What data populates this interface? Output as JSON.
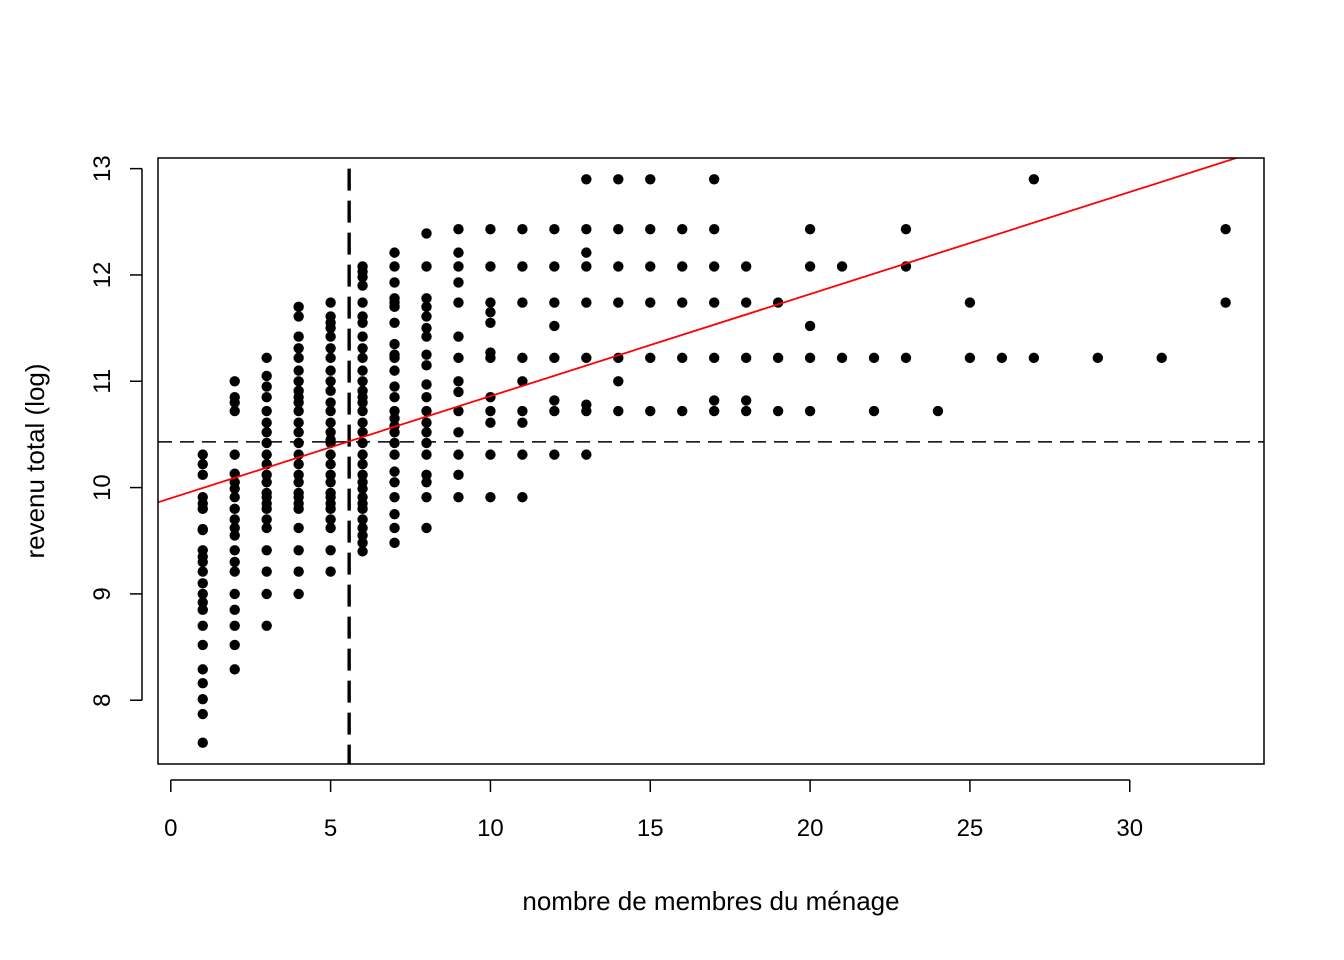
{
  "chart_data": {
    "type": "scatter",
    "title": "",
    "xlabel": "nombre de membres du ménage",
    "ylabel": "revenu total (log)",
    "xlim": [
      -0.4,
      34.2
    ],
    "ylim": [
      7.4,
      13.1
    ],
    "x_ticks": [
      0,
      5,
      10,
      15,
      20,
      25,
      30
    ],
    "y_ticks": [
      8,
      9,
      10,
      11,
      12,
      13
    ],
    "grid": false,
    "legend": "none",
    "point_color": "#000000",
    "regression_line": {
      "intercept": 9.9,
      "slope": 0.096,
      "color": "#ff0000"
    },
    "mean_x": 5.58,
    "mean_y": 10.43,
    "groups": [
      {
        "x": 1,
        "y": [
          10.31,
          10.22,
          10.12,
          9.91,
          9.85,
          9.8,
          9.61,
          9.6,
          9.41,
          9.35,
          9.3,
          9.21,
          9.1,
          9.0,
          8.92,
          8.85,
          8.7,
          8.52,
          8.29,
          8.16,
          8.01,
          7.87,
          7.6
        ]
      },
      {
        "x": 2,
        "y": [
          11.0,
          10.85,
          10.8,
          10.72,
          10.31,
          10.13,
          10.05,
          9.99,
          9.91,
          9.8,
          9.7,
          9.62,
          9.55,
          9.41,
          9.3,
          9.21,
          9.0,
          8.85,
          8.7,
          8.52,
          8.29
        ]
      },
      {
        "x": 3,
        "y": [
          11.22,
          11.05,
          10.95,
          10.85,
          10.72,
          10.61,
          10.52,
          10.42,
          10.31,
          10.22,
          10.12,
          10.05,
          9.95,
          9.91,
          9.85,
          9.8,
          9.7,
          9.62,
          9.41,
          9.21,
          9.0,
          8.7
        ]
      },
      {
        "x": 4,
        "y": [
          11.7,
          11.61,
          11.42,
          11.31,
          11.22,
          11.1,
          11.0,
          10.91,
          10.85,
          10.8,
          10.72,
          10.61,
          10.52,
          10.42,
          10.31,
          10.22,
          10.12,
          10.05,
          9.95,
          9.91,
          9.85,
          9.8,
          9.62,
          9.41,
          9.21,
          9.0
        ]
      },
      {
        "x": 5,
        "y": [
          11.74,
          11.61,
          11.55,
          11.5,
          11.42,
          11.31,
          11.22,
          11.1,
          11.0,
          10.91,
          10.8,
          10.72,
          10.61,
          10.52,
          10.45,
          10.42,
          10.31,
          10.22,
          10.12,
          10.05,
          9.95,
          9.91,
          9.85,
          9.8,
          9.7,
          9.62,
          9.41,
          9.21
        ]
      },
      {
        "x": 6,
        "y": [
          12.08,
          12.03,
          11.98,
          11.9,
          11.74,
          11.61,
          11.55,
          11.42,
          11.31,
          11.22,
          11.1,
          11.0,
          10.91,
          10.85,
          10.8,
          10.72,
          10.61,
          10.52,
          10.42,
          10.31,
          10.22,
          10.12,
          10.05,
          9.99,
          9.91,
          9.85,
          9.8,
          9.7,
          9.62,
          9.55,
          9.48,
          9.4
        ]
      },
      {
        "x": 7,
        "y": [
          12.21,
          12.08,
          11.93,
          11.78,
          11.74,
          11.7,
          11.55,
          11.35,
          11.25,
          11.22,
          11.1,
          10.95,
          10.85,
          10.72,
          10.65,
          10.58,
          10.52,
          10.42,
          10.31,
          10.15,
          10.05,
          9.91,
          9.75,
          9.62,
          9.48
        ]
      },
      {
        "x": 8,
        "y": [
          12.39,
          12.08,
          11.78,
          11.7,
          11.61,
          11.5,
          11.42,
          11.25,
          11.15,
          10.97,
          10.85,
          10.72,
          10.61,
          10.52,
          10.42,
          10.31,
          10.12,
          10.05,
          9.91,
          9.62
        ]
      },
      {
        "x": 9,
        "y": [
          12.43,
          12.21,
          12.08,
          11.93,
          11.74,
          11.42,
          11.22,
          11.0,
          10.9,
          10.72,
          10.52,
          10.31,
          10.12,
          9.91
        ]
      },
      {
        "x": 10,
        "y": [
          12.43,
          12.08,
          11.74,
          11.65,
          11.55,
          11.27,
          11.22,
          10.85,
          10.72,
          10.61,
          10.31,
          9.91
        ]
      },
      {
        "x": 11,
        "y": [
          12.43,
          12.08,
          11.74,
          11.22,
          11.0,
          10.72,
          10.61,
          10.31,
          9.91
        ]
      },
      {
        "x": 12,
        "y": [
          12.43,
          12.08,
          11.74,
          11.52,
          11.22,
          10.82,
          10.72,
          10.31
        ]
      },
      {
        "x": 13,
        "y": [
          12.9,
          12.43,
          12.21,
          12.08,
          11.74,
          11.22,
          10.78,
          10.72,
          10.31
        ]
      },
      {
        "x": 14,
        "y": [
          12.9,
          12.43,
          12.08,
          11.74,
          11.22,
          11.0,
          10.72
        ]
      },
      {
        "x": 15,
        "y": [
          12.9,
          12.43,
          12.08,
          11.74,
          11.22,
          10.72
        ]
      },
      {
        "x": 16,
        "y": [
          12.43,
          12.08,
          11.74,
          11.22,
          10.72
        ]
      },
      {
        "x": 17,
        "y": [
          12.9,
          12.43,
          12.08,
          11.74,
          11.22,
          10.82,
          10.72
        ]
      },
      {
        "x": 18,
        "y": [
          12.08,
          11.74,
          11.22,
          10.82,
          10.72
        ]
      },
      {
        "x": 19,
        "y": [
          11.74,
          11.22,
          10.72
        ]
      },
      {
        "x": 20,
        "y": [
          12.43,
          12.08,
          11.52,
          11.22,
          10.72
        ]
      },
      {
        "x": 21,
        "y": [
          12.08,
          11.22
        ]
      },
      {
        "x": 22,
        "y": [
          11.22,
          10.72
        ]
      },
      {
        "x": 23,
        "y": [
          12.43,
          12.08,
          11.22
        ]
      },
      {
        "x": 24,
        "y": [
          10.72
        ]
      },
      {
        "x": 25,
        "y": [
          11.74,
          11.22
        ]
      },
      {
        "x": 26,
        "y": [
          11.22
        ]
      },
      {
        "x": 27,
        "y": [
          12.9,
          11.22
        ]
      },
      {
        "x": 29,
        "y": [
          11.22
        ]
      },
      {
        "x": 31,
        "y": [
          11.22
        ]
      },
      {
        "x": 33,
        "y": [
          12.43,
          11.74
        ]
      }
    ]
  }
}
